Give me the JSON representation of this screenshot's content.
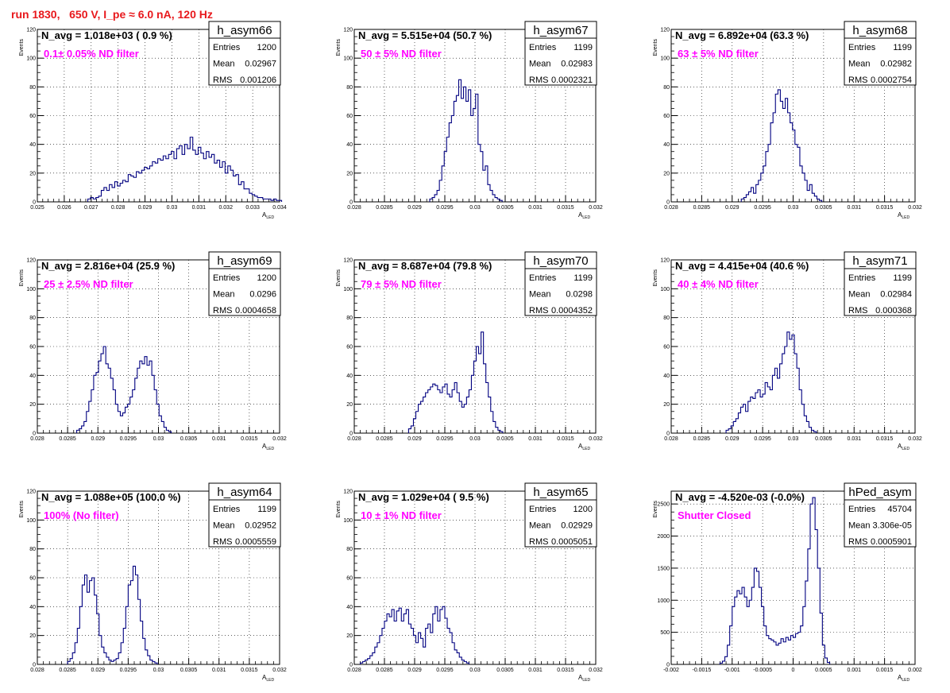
{
  "page_title": "run 1830,   650 V, I_pe ≈ 6.0 nA, 120 Hz",
  "colors": {
    "histogram": "#000080",
    "annotation": "#ff00ff",
    "title": "#e8181c",
    "grid": "#000000"
  },
  "stats_labels": {
    "entries": "Entries",
    "mean": "Mean",
    "rms": "RMS"
  },
  "y_axis_label": "Events",
  "x_axis_label_main": "A",
  "x_axis_label_sub": "LED",
  "chart_data": [
    {
      "type": "histogram",
      "name": "h_asym66",
      "navg": "N_avg = 1.018e+03 ( 0.9 %)",
      "note": "0.1± 0.05% ND filter",
      "stats": {
        "entries": "1200",
        "mean": "0.02967",
        "rms": "0.001206"
      },
      "xlim": [
        0.025,
        0.034
      ],
      "ylim": [
        0,
        120
      ],
      "xticks": [
        0.025,
        0.026,
        0.027,
        0.028,
        0.029,
        0.03,
        0.031,
        0.032,
        0.033,
        0.034
      ],
      "xtick_labels": [
        "0.025",
        "0.026",
        "0.027",
        "0.028",
        "0.029",
        "0.03",
        "0.031",
        "0.032",
        "0.033",
        "0.034"
      ],
      "yticks": [
        0,
        20,
        40,
        60,
        80,
        100,
        120
      ],
      "ytick_labels": [
        "0",
        "20",
        "40",
        "60",
        "80",
        "100",
        "120"
      ],
      "bin_start": 0.026875,
      "bin_width": 0.0001,
      "values": [
        2,
        3,
        2,
        3,
        4,
        8,
        10,
        8,
        12,
        10,
        14,
        11,
        13,
        15,
        14,
        19,
        18,
        17,
        21,
        20,
        22,
        24,
        23,
        25,
        28,
        27,
        30,
        29,
        32,
        30,
        33,
        35,
        30,
        37,
        39,
        33,
        40,
        37,
        45,
        36,
        33,
        38,
        34,
        30,
        35,
        31,
        33,
        27,
        29,
        24,
        28,
        20,
        25,
        22,
        18,
        19,
        12,
        14,
        9,
        9,
        6,
        5,
        4,
        3,
        3,
        2,
        2,
        2,
        1,
        2,
        1,
        1
      ]
    },
    {
      "type": "histogram",
      "name": "h_asym67",
      "navg": "N_avg = 5.515e+04 (50.7 %)",
      "note": "50 ± 5% ND filter",
      "stats": {
        "entries": "1199",
        "mean": "0.02983",
        "rms": "0.0002321"
      },
      "xlim": [
        0.028,
        0.032
      ],
      "ylim": [
        0,
        120
      ],
      "xticks": [
        0.028,
        0.0285,
        0.029,
        0.0295,
        0.03,
        0.0305,
        0.031,
        0.0315,
        0.032
      ],
      "xtick_labels": [
        "0.028",
        "0.0285",
        "0.029",
        "0.0295",
        "0.03",
        "0.0305",
        "0.031",
        "0.0315",
        "0.032"
      ],
      "yticks": [
        0,
        20,
        40,
        60,
        80,
        100,
        120
      ],
      "ytick_labels": [
        "0",
        "20",
        "40",
        "60",
        "80",
        "100",
        "120"
      ],
      "bin_start": 0.02925,
      "bin_width": 4e-05,
      "values": [
        2,
        3,
        5,
        8,
        15,
        25,
        35,
        45,
        55,
        60,
        70,
        74,
        85,
        72,
        80,
        70,
        78,
        60,
        65,
        75,
        40,
        35,
        22,
        25,
        12,
        8,
        5,
        3,
        2,
        1
      ]
    },
    {
      "type": "histogram",
      "name": "h_asym68",
      "navg": "N_avg = 6.892e+04 (63.3 %)",
      "note": "63 ± 5% ND filter",
      "stats": {
        "entries": "1199",
        "mean": "0.02982",
        "rms": "0.0002754"
      },
      "xlim": [
        0.028,
        0.032
      ],
      "ylim": [
        0,
        120
      ],
      "xticks": [
        0.028,
        0.0285,
        0.029,
        0.0295,
        0.03,
        0.0305,
        0.031,
        0.0315,
        0.032
      ],
      "xtick_labels": [
        "0.028",
        "0.0285",
        "0.029",
        "0.0295",
        "0.03",
        "0.0305",
        "0.031",
        "0.0315",
        "0.032"
      ],
      "yticks": [
        0,
        20,
        40,
        60,
        80,
        100,
        120
      ],
      "ytick_labels": [
        "0",
        "20",
        "40",
        "60",
        "80",
        "100",
        "120"
      ],
      "bin_start": 0.02915,
      "bin_width": 4e-05,
      "values": [
        2,
        3,
        5,
        7,
        10,
        6,
        12,
        15,
        20,
        25,
        35,
        40,
        55,
        62,
        75,
        78,
        70,
        65,
        72,
        62,
        55,
        50,
        40,
        38,
        25,
        20,
        15,
        8,
        12,
        6,
        4,
        2,
        1
      ]
    },
    {
      "type": "histogram",
      "name": "h_asym69",
      "navg": "N_avg = 2.816e+04 (25.9 %)",
      "note": "25 ± 2.5% ND filter",
      "stats": {
        "entries": "1200",
        "mean": "0.0296",
        "rms": "0.0004658"
      },
      "xlim": [
        0.028,
        0.032
      ],
      "ylim": [
        0,
        120
      ],
      "xticks": [
        0.028,
        0.0285,
        0.029,
        0.0295,
        0.03,
        0.0305,
        0.031,
        0.0315,
        0.032
      ],
      "xtick_labels": [
        "0.028",
        "0.0285",
        "0.029",
        "0.0295",
        "0.03",
        "0.0305",
        "0.031",
        "0.0315",
        "0.032"
      ],
      "yticks": [
        0,
        20,
        40,
        60,
        80,
        100,
        120
      ],
      "ytick_labels": [
        "0",
        "20",
        "40",
        "60",
        "80",
        "100",
        "120"
      ],
      "bin_start": 0.02865,
      "bin_width": 4e-05,
      "values": [
        2,
        3,
        5,
        8,
        15,
        22,
        30,
        40,
        42,
        50,
        55,
        60,
        48,
        45,
        38,
        30,
        20,
        15,
        12,
        14,
        18,
        20,
        25,
        30,
        38,
        45,
        50,
        48,
        53,
        47,
        50,
        40,
        30,
        20,
        12,
        8,
        4,
        2,
        1
      ]
    },
    {
      "type": "histogram",
      "name": "h_asym70",
      "navg": "N_avg = 8.687e+04 (79.8 %)",
      "note": "79 ± 5% ND filter",
      "stats": {
        "entries": "1199",
        "mean": "0.0298",
        "rms": "0.0004352"
      },
      "xlim": [
        0.028,
        0.032
      ],
      "ylim": [
        0,
        120
      ],
      "xticks": [
        0.028,
        0.0285,
        0.029,
        0.0295,
        0.03,
        0.0305,
        0.031,
        0.0315,
        0.032
      ],
      "xtick_labels": [
        "0.028",
        "0.0285",
        "0.029",
        "0.0295",
        "0.03",
        "0.0305",
        "0.031",
        "0.0315",
        "0.032"
      ],
      "yticks": [
        0,
        20,
        40,
        60,
        80,
        100,
        120
      ],
      "ytick_labels": [
        "0",
        "20",
        "40",
        "60",
        "80",
        "100",
        "120"
      ],
      "bin_start": 0.0289,
      "bin_width": 4e-05,
      "values": [
        3,
        5,
        10,
        15,
        20,
        22,
        25,
        28,
        30,
        32,
        34,
        33,
        30,
        28,
        32,
        34,
        27,
        25,
        30,
        35,
        28,
        22,
        18,
        20,
        25,
        30,
        40,
        50,
        60,
        55,
        70,
        48,
        35,
        25,
        15,
        8,
        4,
        2,
        1
      ]
    },
    {
      "type": "histogram",
      "name": "h_asym71",
      "navg": "N_avg = 4.415e+04 (40.6 %)",
      "note": "40 ± 4% ND filter",
      "stats": {
        "entries": "1199",
        "mean": "0.02984",
        "rms": "0.000368"
      },
      "xlim": [
        0.028,
        0.032
      ],
      "ylim": [
        0,
        120
      ],
      "xticks": [
        0.028,
        0.0285,
        0.029,
        0.0295,
        0.03,
        0.0305,
        0.031,
        0.0315,
        0.032
      ],
      "xtick_labels": [
        "0.028",
        "0.0285",
        "0.029",
        "0.0295",
        "0.03",
        "0.0305",
        "0.031",
        "0.0315",
        "0.032"
      ],
      "yticks": [
        0,
        20,
        40,
        60,
        80,
        100,
        120
      ],
      "ytick_labels": [
        "0",
        "20",
        "40",
        "60",
        "80",
        "100",
        "120"
      ],
      "bin_start": 0.0289,
      "bin_width": 4e-05,
      "values": [
        2,
        3,
        5,
        8,
        10,
        14,
        18,
        20,
        15,
        22,
        25,
        24,
        28,
        30,
        25,
        27,
        35,
        32,
        30,
        40,
        45,
        38,
        48,
        55,
        60,
        70,
        65,
        68,
        55,
        45,
        30,
        20,
        12,
        8,
        4,
        2,
        1
      ]
    },
    {
      "type": "histogram",
      "name": "h_asym64",
      "navg": "N_avg = 1.088e+05 (100.0 %)",
      "note": "100% (No filter)",
      "stats": {
        "entries": "1199",
        "mean": "0.02952",
        "rms": "0.0005559"
      },
      "xlim": [
        0.028,
        0.032
      ],
      "ylim": [
        0,
        120
      ],
      "xticks": [
        0.028,
        0.0285,
        0.029,
        0.0295,
        0.03,
        0.0305,
        0.031,
        0.0315,
        0.032
      ],
      "xtick_labels": [
        "0.028",
        "0.0285",
        "0.029",
        "0.0295",
        "0.03",
        "0.0305",
        "0.031",
        "0.0315",
        "0.032"
      ],
      "yticks": [
        0,
        20,
        40,
        60,
        80,
        100,
        120
      ],
      "ytick_labels": [
        "0",
        "20",
        "40",
        "60",
        "80",
        "100",
        "120"
      ],
      "bin_start": 0.0285,
      "bin_width": 4e-05,
      "values": [
        2,
        4,
        8,
        15,
        25,
        40,
        55,
        62,
        50,
        58,
        60,
        48,
        35,
        20,
        12,
        8,
        5,
        3,
        2,
        3,
        4,
        8,
        15,
        25,
        40,
        55,
        58,
        68,
        62,
        45,
        30,
        18,
        10,
        6,
        3,
        2,
        1
      ]
    },
    {
      "type": "histogram",
      "name": "h_asym65",
      "navg": "N_avg = 1.029e+04 ( 9.5 %)",
      "note": "10 ± 1% ND filter",
      "stats": {
        "entries": "1200",
        "mean": "0.02929",
        "rms": "0.0005051"
      },
      "xlim": [
        0.028,
        0.032
      ],
      "ylim": [
        0,
        120
      ],
      "xticks": [
        0.028,
        0.0285,
        0.029,
        0.0295,
        0.03,
        0.0305,
        0.031,
        0.0315,
        0.032
      ],
      "xtick_labels": [
        "0.028",
        "0.0285",
        "0.029",
        "0.0295",
        "0.03",
        "0.0305",
        "0.031",
        "0.0315",
        "0.032"
      ],
      "yticks": [
        0,
        20,
        40,
        60,
        80,
        100,
        120
      ],
      "ytick_labels": [
        "0",
        "20",
        "40",
        "60",
        "80",
        "100",
        "120"
      ],
      "bin_start": 0.0281,
      "bin_width": 4e-05,
      "values": [
        1,
        2,
        3,
        4,
        6,
        8,
        12,
        15,
        20,
        25,
        30,
        35,
        33,
        38,
        30,
        37,
        39,
        30,
        35,
        38,
        28,
        25,
        20,
        15,
        22,
        18,
        12,
        25,
        28,
        22,
        35,
        40,
        30,
        38,
        40,
        32,
        25,
        22,
        15,
        10,
        8,
        5,
        3,
        2,
        1
      ]
    },
    {
      "type": "histogram",
      "name": "hPed_asym",
      "navg": "N_avg = -4.520e-03 (-0.0%)",
      "note": "Shutter Closed",
      "stats": {
        "entries": "45704",
        "mean": "3.306e-05",
        "rms": "0.0005901"
      },
      "xlim": [
        -0.002,
        0.002
      ],
      "ylim": [
        0,
        2700
      ],
      "xticks": [
        -0.002,
        -0.0015,
        -0.001,
        -0.0005,
        0,
        0.0005,
        0.001,
        0.0015,
        0.002
      ],
      "xtick_labels": [
        "-0.002",
        "-0.0015",
        "-0.001",
        "-0.0005",
        "0",
        "0.0005",
        "0.001",
        "0.0015",
        "0.002"
      ],
      "yticks": [
        0,
        500,
        1000,
        1500,
        2000,
        2500
      ],
      "ytick_labels": [
        "0",
        "500",
        "1000",
        "1500",
        "2000",
        "2500"
      ],
      "bin_start": -0.0012,
      "bin_width": 4e-05,
      "values": [
        20,
        50,
        120,
        300,
        600,
        900,
        1050,
        1150,
        1100,
        1200,
        1050,
        900,
        1000,
        1200,
        1500,
        1450,
        1200,
        900,
        600,
        450,
        400,
        380,
        350,
        300,
        330,
        400,
        350,
        420,
        380,
        450,
        420,
        480,
        500,
        600,
        900,
        1300,
        1800,
        2500,
        2600,
        2100,
        1500,
        800,
        300,
        100,
        30
      ]
    }
  ]
}
